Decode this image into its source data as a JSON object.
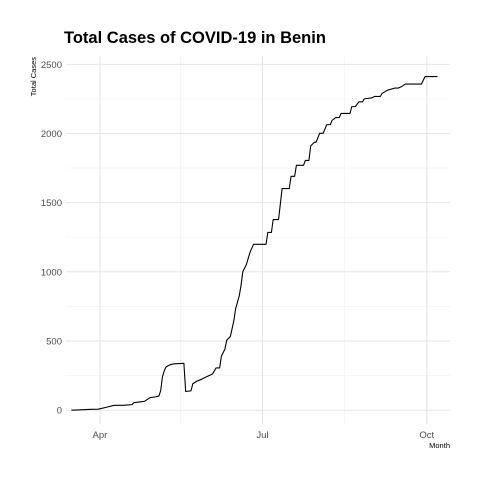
{
  "chart_data": {
    "type": "line",
    "title": "Total Cases of COVID-19 in Benin",
    "xlabel": "Month",
    "ylabel": "Total Cases",
    "x_axis": {
      "start": "2020-03-13",
      "end": "2020-10-14",
      "ticks": [
        {
          "date": "2020-04-01",
          "label": "Apr"
        },
        {
          "date": "2020-07-01",
          "label": "Jul"
        },
        {
          "date": "2020-10-01",
          "label": "Oct"
        }
      ],
      "minor_gridlines": [
        "2020-05-16",
        "2020-08-16"
      ]
    },
    "ylim": [
      -100,
      2560
    ],
    "y_ticks": [
      0,
      500,
      1000,
      1500,
      2000,
      2500
    ],
    "grid": true,
    "series": [
      {
        "color": "#000000",
        "points": [
          [
            "2020-03-16",
            0
          ],
          [
            "2020-03-20",
            2
          ],
          [
            "2020-03-27",
            6
          ],
          [
            "2020-03-31",
            7
          ],
          [
            "2020-04-05",
            22
          ],
          [
            "2020-04-09",
            35
          ],
          [
            "2020-04-14",
            35
          ],
          [
            "2020-04-19",
            40
          ],
          [
            "2020-04-20",
            54
          ],
          [
            "2020-04-26",
            64
          ],
          [
            "2020-04-29",
            90
          ],
          [
            "2020-05-02",
            96
          ],
          [
            "2020-05-04",
            102
          ],
          [
            "2020-05-05",
            140
          ],
          [
            "2020-05-06",
            242
          ],
          [
            "2020-05-07",
            284
          ],
          [
            "2020-05-08",
            312
          ],
          [
            "2020-05-10",
            327
          ],
          [
            "2020-05-12",
            334
          ],
          [
            "2020-05-18",
            339
          ],
          [
            "2020-05-19",
            135
          ],
          [
            "2020-05-22",
            140
          ],
          [
            "2020-05-23",
            191
          ],
          [
            "2020-05-25",
            208
          ],
          [
            "2020-05-28",
            224
          ],
          [
            "2020-05-31",
            243
          ],
          [
            "2020-06-03",
            261
          ],
          [
            "2020-06-05",
            305
          ],
          [
            "2020-06-07",
            305
          ],
          [
            "2020-06-08",
            390
          ],
          [
            "2020-06-10",
            442
          ],
          [
            "2020-06-11",
            506
          ],
          [
            "2020-06-13",
            532
          ],
          [
            "2020-06-15",
            648
          ],
          [
            "2020-06-16",
            735
          ],
          [
            "2020-06-18",
            826
          ],
          [
            "2020-06-19",
            902
          ],
          [
            "2020-06-20",
            1001
          ],
          [
            "2020-06-22",
            1053
          ],
          [
            "2020-06-24",
            1140
          ],
          [
            "2020-06-26",
            1199
          ],
          [
            "2020-06-28",
            1199
          ],
          [
            "2020-07-03",
            1199
          ],
          [
            "2020-07-04",
            1285
          ],
          [
            "2020-07-06",
            1285
          ],
          [
            "2020-07-07",
            1378
          ],
          [
            "2020-07-10",
            1378
          ],
          [
            "2020-07-12",
            1602
          ],
          [
            "2020-07-16",
            1602
          ],
          [
            "2020-07-17",
            1690
          ],
          [
            "2020-07-19",
            1690
          ],
          [
            "2020-07-20",
            1770
          ],
          [
            "2020-07-24",
            1770
          ],
          [
            "2020-07-25",
            1805
          ],
          [
            "2020-07-27",
            1805
          ],
          [
            "2020-07-28",
            1910
          ],
          [
            "2020-07-30",
            1936
          ],
          [
            "2020-07-31",
            1936
          ],
          [
            "2020-08-02",
            2001
          ],
          [
            "2020-08-04",
            2001
          ],
          [
            "2020-08-06",
            2064
          ],
          [
            "2020-08-08",
            2064
          ],
          [
            "2020-08-09",
            2095
          ],
          [
            "2020-08-11",
            2115
          ],
          [
            "2020-08-13",
            2115
          ],
          [
            "2020-08-14",
            2145
          ],
          [
            "2020-08-19",
            2145
          ],
          [
            "2020-08-20",
            2194
          ],
          [
            "2020-08-22",
            2194
          ],
          [
            "2020-08-24",
            2229
          ],
          [
            "2020-08-26",
            2229
          ],
          [
            "2020-08-27",
            2250
          ],
          [
            "2020-08-31",
            2257
          ],
          [
            "2020-09-02",
            2268
          ],
          [
            "2020-09-05",
            2268
          ],
          [
            "2020-09-06",
            2290
          ],
          [
            "2020-09-09",
            2313
          ],
          [
            "2020-09-13",
            2328
          ],
          [
            "2020-09-15",
            2328
          ],
          [
            "2020-09-17",
            2340
          ],
          [
            "2020-09-19",
            2357
          ],
          [
            "2020-09-28",
            2357
          ],
          [
            "2020-09-30",
            2411
          ],
          [
            "2020-10-07",
            2411
          ]
        ]
      }
    ]
  }
}
